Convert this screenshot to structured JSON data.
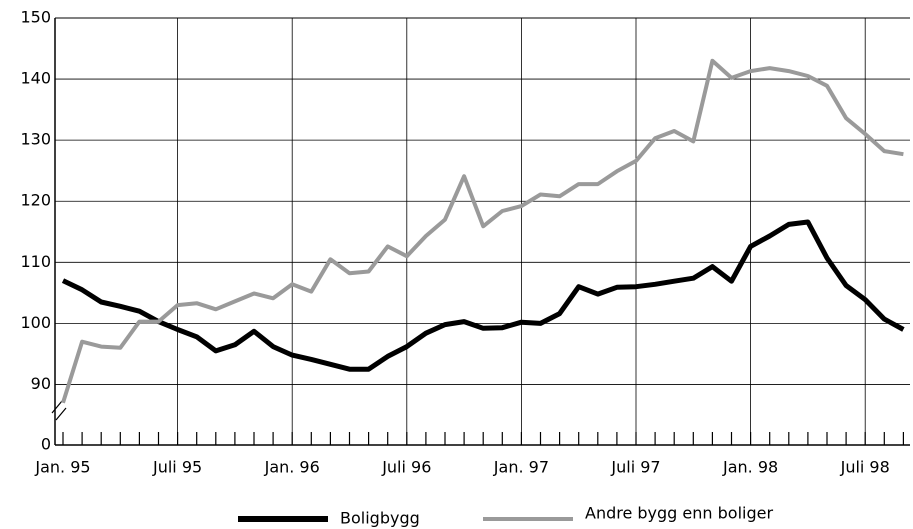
{
  "chart_data": {
    "type": "line",
    "categories": [
      "Jan. 95",
      null,
      null,
      null,
      null,
      null,
      "Juli 95",
      null,
      null,
      null,
      null,
      null,
      "Jan. 96",
      null,
      null,
      null,
      null,
      null,
      "Juli 96",
      null,
      null,
      null,
      null,
      null,
      "Jan. 97",
      null,
      null,
      null,
      null,
      null,
      "Juli 97",
      null,
      null,
      null,
      null,
      null,
      "Jan. 98",
      null,
      null,
      null,
      null,
      null,
      "Juli 98",
      null,
      null
    ],
    "series": [
      {
        "name": "Boligbygg",
        "color": "#000000",
        "values": [
          107,
          105.5,
          103.5,
          102.8,
          102,
          100.3,
          99,
          97.8,
          95.5,
          96.5,
          98.7,
          96.2,
          94.8,
          94.1,
          93.3,
          92.5,
          92.5,
          94.6,
          96.2,
          98.4,
          99.8,
          100.3,
          99.2,
          99.3,
          100.2,
          100,
          101.6,
          106,
          104.8,
          105.9,
          106,
          106.4,
          106.9,
          107.4,
          109.3,
          106.9,
          112.6,
          114.3,
          116.2,
          116.6,
          110.7,
          106.2,
          103.9,
          100.7,
          99
        ]
      },
      {
        "name": "Andre bygg enn boliger",
        "color": "#9a9a9a",
        "values": [
          87,
          97,
          96.2,
          96,
          100.3,
          100.3,
          103,
          103.3,
          102.3,
          103.6,
          104.9,
          104.1,
          106.4,
          105.2,
          110.5,
          108.2,
          108.5,
          112.6,
          111,
          114.3,
          117,
          124.1,
          115.9,
          118.4,
          119.2,
          121.1,
          120.8,
          122.8,
          122.8,
          124.9,
          126.6,
          130.3,
          131.5,
          129.8,
          143,
          140.2,
          141.3,
          141.8,
          141.3,
          140.5,
          138.9,
          133.6,
          131,
          128.2,
          127.7
        ]
      }
    ],
    "ylim": [
      0,
      150
    ],
    "axis_break": [
      0,
      85
    ],
    "yticks": [
      0,
      90,
      100,
      110,
      120,
      130,
      140,
      150
    ],
    "grid": true
  }
}
